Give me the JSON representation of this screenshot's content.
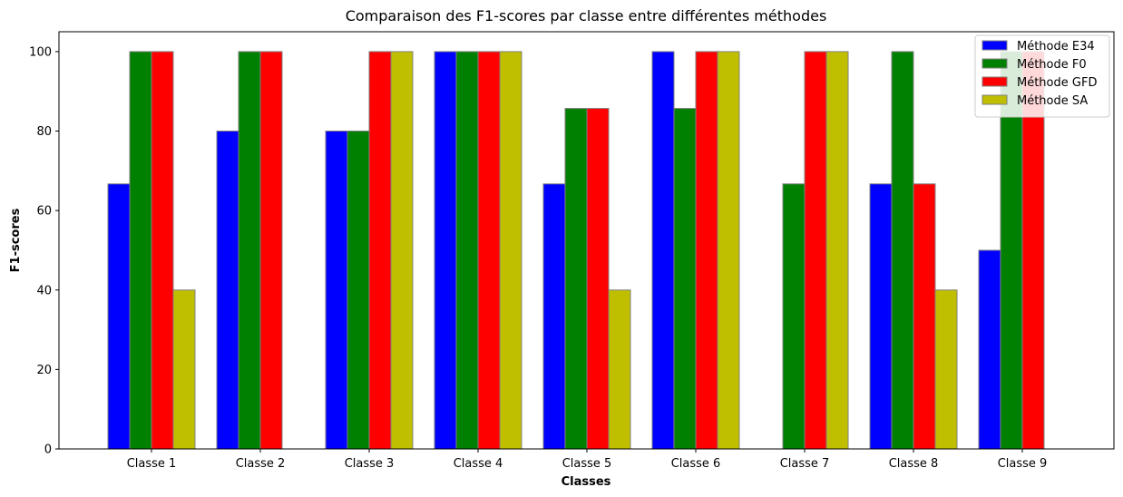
{
  "chart_data": {
    "type": "bar",
    "title": "Comparaison des F1-scores par classe entre différentes méthodes",
    "xlabel": "Classes",
    "ylabel": "F1-scores",
    "ylim": [
      0,
      105
    ],
    "yticks": [
      0,
      20,
      40,
      60,
      80,
      100
    ],
    "grid": false,
    "legend_position": "top-right",
    "categories": [
      "Classe 1",
      "Classe 2",
      "Classe 3",
      "Classe 4",
      "Classe 5",
      "Classe 6",
      "Classe 7",
      "Classe 8",
      "Classe 9"
    ],
    "series": [
      {
        "name": "Méthode E34",
        "color": "#0000ff",
        "values": [
          66.7,
          80,
          80,
          100,
          66.7,
          100,
          0,
          66.7,
          50
        ]
      },
      {
        "name": "Méthode F0",
        "color": "#008000",
        "values": [
          100,
          100,
          80,
          100,
          85.7,
          85.7,
          66.7,
          100,
          100
        ]
      },
      {
        "name": "Méthode GFD",
        "color": "#ff0000",
        "values": [
          100,
          100,
          100,
          100,
          85.7,
          100,
          100,
          66.7,
          100
        ]
      },
      {
        "name": "Méthode SA",
        "color": "#bfbf00",
        "values": [
          40,
          0,
          100,
          100,
          40,
          100,
          100,
          40,
          0
        ]
      }
    ]
  }
}
